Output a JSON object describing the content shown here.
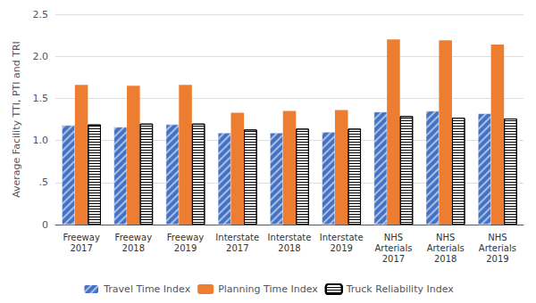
{
  "chart_data": {
    "type": "bar",
    "categories": [
      "Freeway\n2017",
      "Freeway\n2018",
      "Freeway\n2019",
      "Interstate\n2017",
      "Interstate\n2018",
      "Interstate\n2019",
      "NHS\nArterials\n2017",
      "NHS\nArterials\n2018",
      "NHS\nArterials\n2019"
    ],
    "series": [
      {
        "name": "Travel Time Index",
        "color": "#4472C4",
        "values": [
          1.18,
          1.16,
          1.19,
          1.09,
          1.09,
          1.1,
          1.34,
          1.35,
          1.32
        ]
      },
      {
        "name": "Planning Time Index",
        "color": "#ED7D31",
        "values": [
          1.66,
          1.65,
          1.66,
          1.33,
          1.35,
          1.36,
          2.2,
          2.19,
          2.14
        ]
      },
      {
        "name": "Truck Reliability Index",
        "color": "#ffffff",
        "values": [
          1.19,
          1.2,
          1.2,
          1.13,
          1.14,
          1.14,
          1.29,
          1.27,
          1.26
        ]
      }
    ],
    "ylabel": "Average Facility TTI, PTI and TRI",
    "ylim": [
      0,
      2.5
    ],
    "yticks": [
      0,
      {
        "value": 0.5,
        "label": ".5"
      },
      {
        "value": 1.0,
        "label": "1.0"
      },
      {
        "value": 1.5,
        "label": "1.5"
      },
      {
        "value": 2.0,
        "label": "2.0"
      },
      {
        "value": 2.5,
        "label": "2.5"
      }
    ],
    "grid": true,
    "legend": "bottom"
  }
}
